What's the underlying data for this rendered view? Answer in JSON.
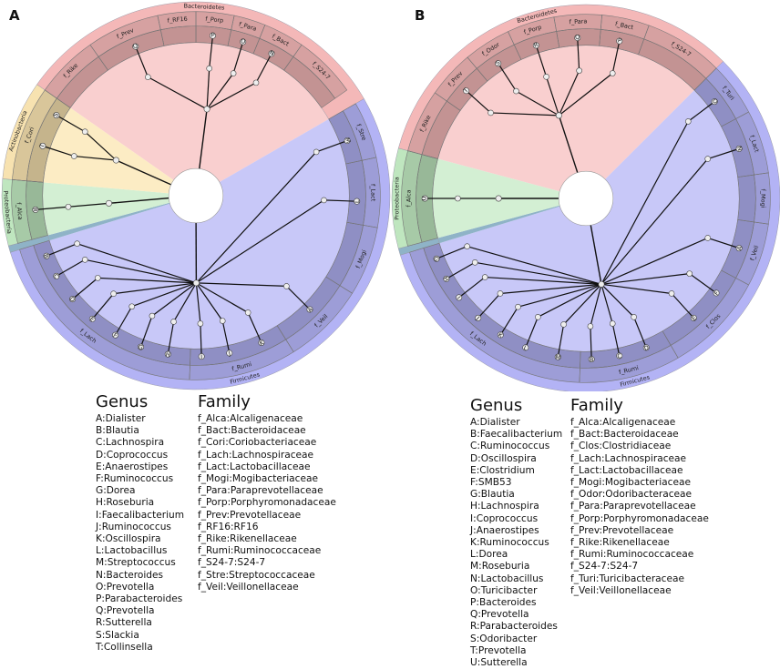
{
  "colors": {
    "firmicutes": "#b3b3f5",
    "bacteroidetes": "#f4b8b8",
    "actinobacteria": "#f7e2b0",
    "proteobacteria": "#bfe6bf",
    "gap": "#8fb3c7",
    "inner_firmicutes": "#c8c8f8",
    "inner_bacteroidetes": "#f9cfcf",
    "inner_actinobacteria": "#fcecc4",
    "inner_proteobacteria": "#d3efd3",
    "ring_shade": "#000000",
    "branch": "#111111",
    "node_fill": "#eeeeee"
  },
  "panels": [
    {
      "label": "A",
      "phyla": [
        {
          "name": "Bacteroidetes",
          "color": "bacteroidetes",
          "start": -55,
          "end": 60
        },
        {
          "name": "Firmicutes",
          "color": "firmicutes",
          "start": 60,
          "end": 253
        },
        {
          "name": "",
          "color": "gap",
          "start": 253,
          "end": 255
        },
        {
          "name": "Proteobacteria",
          "color": "proteobacteria",
          "start": 255,
          "end": 275
        },
        {
          "name": "Actinobacteria",
          "color": "actinobacteria",
          "start": 275,
          "end": 305
        }
      ],
      "families": [
        {
          "name": "f_Rike",
          "start": -55,
          "end": -35
        },
        {
          "name": "f_Prev",
          "start": -35,
          "end": -12
        },
        {
          "name": "f_RF16",
          "start": -12,
          "end": 0
        },
        {
          "name": "f_Porp",
          "start": 0,
          "end": 12
        },
        {
          "name": "f_Para",
          "start": 12,
          "end": 22
        },
        {
          "name": "f_Bact",
          "start": 22,
          "end": 35
        },
        {
          "name": "f_S24-7",
          "start": 35,
          "end": 55
        },
        {
          "name": "f_Stre",
          "start": 60,
          "end": 78
        },
        {
          "name": "f_Lact",
          "start": 78,
          "end": 100
        },
        {
          "name": "f_Mogi",
          "start": 100,
          "end": 122
        },
        {
          "name": "f_Veil",
          "start": 122,
          "end": 148
        },
        {
          "name": "f_Rumi",
          "start": 148,
          "end": 182
        },
        {
          "name": "f_Lach",
          "start": 182,
          "end": 253
        },
        {
          "name": "f_Alca",
          "start": 255,
          "end": 275
        },
        {
          "name": "f_Cori",
          "start": 275,
          "end": 305
        }
      ],
      "leaves": [
        {
          "label": "Q",
          "angle": -22
        },
        {
          "label": "P",
          "angle": 6
        },
        {
          "label": "O",
          "angle": 17
        },
        {
          "label": "N",
          "angle": 28
        },
        {
          "label": "M",
          "angle": 70
        },
        {
          "label": "L",
          "angle": 92
        },
        {
          "label": "A",
          "angle": 135
        },
        {
          "label": "K",
          "angle": 156
        },
        {
          "label": "J",
          "angle": 168
        },
        {
          "label": "I",
          "angle": 178
        },
        {
          "label": "H",
          "angle": 190
        },
        {
          "label": "G",
          "angle": 200
        },
        {
          "label": "F",
          "angle": 210
        },
        {
          "label": "E",
          "angle": 220
        },
        {
          "label": "D",
          "angle": 230
        },
        {
          "label": "C",
          "angle": 240
        },
        {
          "label": "B",
          "angle": 248
        },
        {
          "label": "R",
          "angle": 265
        },
        {
          "label": "T",
          "angle": 288
        },
        {
          "label": "S",
          "angle": 300
        }
      ],
      "legend": {
        "genus_title": "Genus",
        "genus": [
          "A:Dialister",
          "B:Blautia",
          "C:Lachnospira",
          "D:Coprococcus",
          "E:Anaerostipes",
          "F:Ruminococcus",
          "G:Dorea",
          "H:Roseburia",
          "I:Faecalibacterium",
          "J:Ruminococcus",
          "K:Oscillospira",
          "L:Lactobacillus",
          "M:Streptococcus",
          "N:Bacteroides",
          "O:Prevotella",
          "P:Parabacteroides",
          "Q:Prevotella",
          "R:Sutterella",
          "S:Slackia",
          "T:Collinsella"
        ],
        "family_title": "Family",
        "family": [
          "f_Alca:Alcaligenaceae",
          "f_Bact:Bacteroidaceae",
          "f_Cori:Coriobacteriaceae",
          "f_Lach:Lachnospiraceae",
          "f_Lact:Lactobacillaceae",
          "f_Mogi:Mogibacteriaceae",
          "f_Para:Paraprevotellaceae",
          "f_Porp:Porphyromonadaceae",
          "f_Prev:Prevotellaceae",
          "f_RF16:RF16",
          "f_Rike:Rikenellaceae",
          "f_Rumi:Ruminococcaceae",
          "f_S24-7:S24-7",
          "f_Stre:Streptococcaceae",
          "f_Veil:Veillonellaceae"
        ]
      }
    },
    {
      "label": "B",
      "phyla": [
        {
          "name": "Bacteroidetes",
          "color": "bacteroidetes",
          "start": -75,
          "end": 45
        },
        {
          "name": "Firmicutes",
          "color": "firmicutes",
          "start": 45,
          "end": 253
        },
        {
          "name": "",
          "color": "gap",
          "start": 253,
          "end": 255
        },
        {
          "name": "Proteobacteria",
          "color": "proteobacteria",
          "start": 255,
          "end": 285
        }
      ],
      "families": [
        {
          "name": "f_Rike",
          "start": -75,
          "end": -55
        },
        {
          "name": "f_Prev",
          "start": -55,
          "end": -40
        },
        {
          "name": "f_Odor",
          "start": -40,
          "end": -25
        },
        {
          "name": "f_Porp",
          "start": -25,
          "end": -10
        },
        {
          "name": "f_Para",
          "start": -10,
          "end": 5
        },
        {
          "name": "f_Bact",
          "start": 5,
          "end": 20
        },
        {
          "name": "f_S24-7",
          "start": 20,
          "end": 45
        },
        {
          "name": "f_Turi",
          "start": 45,
          "end": 62
        },
        {
          "name": "f_Lact",
          "start": 62,
          "end": 82
        },
        {
          "name": "f_Mogi",
          "start": 82,
          "end": 98
        },
        {
          "name": "f_Veil",
          "start": 98,
          "end": 118
        },
        {
          "name": "f_Clos",
          "start": 118,
          "end": 150
        },
        {
          "name": "f_Rumi",
          "start": 150,
          "end": 182
        },
        {
          "name": "f_Lach",
          "start": 182,
          "end": 253
        },
        {
          "name": "f_Alca",
          "start": 255,
          "end": 285
        }
      ],
      "leaves": [
        {
          "label": "T",
          "angle": -48
        },
        {
          "label": "S",
          "angle": -33
        },
        {
          "label": "R",
          "angle": -18
        },
        {
          "label": "Q",
          "angle": -3
        },
        {
          "label": "P",
          "angle": 12
        },
        {
          "label": "O",
          "angle": 53
        },
        {
          "label": "N",
          "angle": 72
        },
        {
          "label": "A",
          "angle": 108
        },
        {
          "label": "F",
          "angle": 126
        },
        {
          "label": "E",
          "angle": 138
        },
        {
          "label": "D",
          "angle": 158
        },
        {
          "label": "C",
          "angle": 168
        },
        {
          "label": "B",
          "angle": 178
        },
        {
          "label": "M",
          "angle": 190
        },
        {
          "label": "L",
          "angle": 202
        },
        {
          "label": "K",
          "angle": 212
        },
        {
          "label": "J",
          "angle": 222
        },
        {
          "label": "I",
          "angle": 232
        },
        {
          "label": "H",
          "angle": 240
        },
        {
          "label": "G",
          "angle": 248
        },
        {
          "label": "U",
          "angle": 270
        }
      ],
      "legend": {
        "genus_title": "Genus",
        "genus": [
          "A:Dialister",
          "B:Faecalibacterium",
          "C:Ruminococcus",
          "D:Oscillospira",
          "E:Clostridium",
          "F:SMB53",
          "G:Blautia",
          "H:Lachnospira",
          "I:Coprococcus",
          "J:Anaerostipes",
          "K:Ruminococcus",
          "L:Dorea",
          "M:Roseburia",
          "N:Lactobacillus",
          "O:Turicibacter",
          "P:Bacteroides",
          "Q:Prevotella",
          "R:Parabacteroides",
          "S:Odoribacter",
          "T:Prevotella",
          "U:Sutterella"
        ],
        "family_title": "Family",
        "family": [
          "f_Alca:Alcaligenaceae",
          "f_Bact:Bacteroidaceae",
          "f_Clos:Clostridiaceae",
          "f_Lach:Lachnospiraceae",
          "f_Lact:Lactobacillaceae",
          "f_Mogi:Mogibacteriaceae",
          "f_Odor:Odoribacteraceae",
          "f_Para:Paraprevotellaceae",
          "f_Porp:Porphyromonadaceae",
          "f_Prev:Prevotellaceae",
          "f_Rike:Rikenellaceae",
          "f_Rumi:Ruminococcaceae",
          "f_S24-7:S24-7",
          "f_Turi:Turicibacteraceae",
          "f_Veil:Veillonellaceae"
        ]
      }
    }
  ]
}
